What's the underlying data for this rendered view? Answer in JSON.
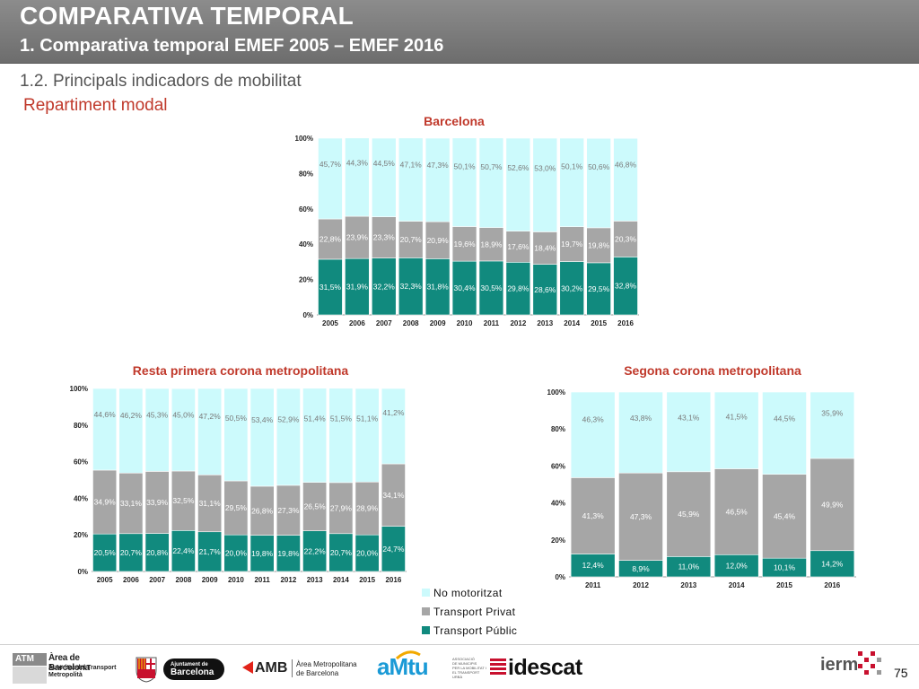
{
  "header": {
    "title": "COMPARATIVA TEMPORAL",
    "subtitle": "1. Comparativa temporal EMEF 2005 – EMEF 2016"
  },
  "section": "1.2. Principals indicadors de mobilitat",
  "subsection": "Repartiment modal",
  "colors": {
    "no_motoritzat": "#ccfafc",
    "transport_privat": "#a6a6a6",
    "transport_public": "#118a7e"
  },
  "legend": {
    "items": [
      {
        "label": "No motoritzat",
        "color": "#ccfafc"
      },
      {
        "label": "Transport Privat",
        "color": "#a6a6a6"
      },
      {
        "label": "Transport Públic",
        "color": "#118a7e"
      }
    ]
  },
  "chart_data": [
    {
      "type": "bar",
      "stacked": true,
      "title": "Barcelona",
      "categories": [
        "2005",
        "2006",
        "2007",
        "2008",
        "2009",
        "2010",
        "2011",
        "2012",
        "2013",
        "2014",
        "2015",
        "2016"
      ],
      "yticks": [
        "0%",
        "20%",
        "40%",
        "60%",
        "80%",
        "100%"
      ],
      "ylim": [
        0,
        100
      ],
      "series": [
        {
          "name": "Transport Públic",
          "values": [
            31.5,
            31.9,
            32.2,
            32.3,
            31.8,
            30.4,
            30.5,
            29.8,
            28.6,
            30.2,
            29.5,
            32.8
          ],
          "labels": [
            "31,5%",
            "31,9%",
            "32,2%",
            "32,3%",
            "31,8%",
            "30,4%",
            "30,5%",
            "29,8%",
            "28,6%",
            "30,2%",
            "29,5%",
            "32,8%"
          ]
        },
        {
          "name": "Transport Privat",
          "values": [
            22.8,
            23.9,
            23.3,
            20.7,
            20.9,
            19.6,
            18.9,
            17.6,
            18.4,
            19.7,
            19.8,
            20.3
          ],
          "labels": [
            "22,8%",
            "23,9%",
            "23,3%",
            "20,7%",
            "20,9%",
            "19,6%",
            "18,9%",
            "17,6%",
            "18,4%",
            "19,7%",
            "19,8%",
            "20,3%"
          ]
        },
        {
          "name": "No motoritzat",
          "values": [
            45.7,
            44.3,
            44.5,
            47.1,
            47.3,
            50.1,
            50.7,
            52.6,
            53.0,
            50.1,
            50.6,
            46.8
          ],
          "labels": [
            "45,7%",
            "44,3%",
            "44,5%",
            "47,1%",
            "47,3%",
            "50,1%",
            "50,7%",
            "52,6%",
            "53,0%",
            "50,1%",
            "50,6%",
            "46,8%"
          ]
        }
      ]
    },
    {
      "type": "bar",
      "stacked": true,
      "title": "Resta primera corona metropolitana",
      "categories": [
        "2005",
        "2006",
        "2007",
        "2008",
        "2009",
        "2010",
        "2011",
        "2012",
        "2013",
        "2014",
        "2015",
        "2016"
      ],
      "yticks": [
        "0%",
        "20%",
        "40%",
        "60%",
        "80%",
        "100%"
      ],
      "ylim": [
        0,
        100
      ],
      "series": [
        {
          "name": "Transport Públic",
          "values": [
            20.5,
            20.7,
            20.8,
            22.4,
            21.7,
            20.0,
            19.8,
            19.8,
            22.2,
            20.7,
            20.0,
            24.7
          ],
          "labels": [
            "20,5%",
            "20,7%",
            "20,8%",
            "22,4%",
            "21,7%",
            "20,0%",
            "19,8%",
            "19,8%",
            "22,2%",
            "20,7%",
            "20,0%",
            "24,7%"
          ]
        },
        {
          "name": "Transport Privat",
          "values": [
            34.9,
            33.1,
            33.9,
            32.5,
            31.1,
            29.5,
            26.8,
            27.3,
            26.5,
            27.9,
            28.9,
            34.1
          ],
          "labels": [
            "34,9%",
            "33,1%",
            "33,9%",
            "32,5%",
            "31,1%",
            "29,5%",
            "26,8%",
            "27,3%",
            "26,5%",
            "27,9%",
            "28,9%",
            "34,1%"
          ]
        },
        {
          "name": "No motoritzat",
          "values": [
            44.6,
            46.2,
            45.3,
            45.0,
            47.2,
            50.5,
            53.4,
            52.9,
            51.4,
            51.5,
            51.1,
            41.2
          ],
          "labels": [
            "44,6%",
            "46,2%",
            "45,3%",
            "45,0%",
            "47,2%",
            "50,5%",
            "53,4%",
            "52,9%",
            "51,4%",
            "51,5%",
            "51,1%",
            "41,2%"
          ]
        }
      ]
    },
    {
      "type": "bar",
      "stacked": true,
      "title": "Segona corona metropolitana",
      "categories": [
        "2011",
        "2012",
        "2013",
        "2014",
        "2015",
        "2016"
      ],
      "yticks": [
        "0%",
        "20%",
        "40%",
        "60%",
        "80%",
        "100%"
      ],
      "ylim": [
        0,
        100
      ],
      "series": [
        {
          "name": "Transport Públic",
          "values": [
            12.4,
            8.9,
            11.0,
            12.0,
            10.1,
            14.2
          ],
          "labels": [
            "12,4%",
            "8,9%",
            "11,0%",
            "12,0%",
            "10,1%",
            "14,2%"
          ]
        },
        {
          "name": "Transport Privat",
          "values": [
            41.3,
            47.3,
            45.9,
            46.5,
            45.4,
            49.9
          ],
          "labels": [
            "41,3%",
            "47,3%",
            "45,9%",
            "46,5%",
            "45,4%",
            "49,9%"
          ]
        },
        {
          "name": "No motoritzat",
          "values": [
            46.3,
            43.8,
            43.1,
            41.5,
            44.5,
            35.9
          ],
          "labels": [
            "46,3%",
            "43,8%",
            "43,1%",
            "41,5%",
            "44,5%",
            "35,9%"
          ]
        }
      ]
    }
  ],
  "footer": {
    "atm": {
      "badge": "ATM",
      "line1": "Àrea de Barcelona",
      "line2": "Autoritat del Transport",
      "line3": "Metropolità"
    },
    "ajuntament": {
      "line1": "Ajuntament de",
      "line2": "Barcelona"
    },
    "amb": {
      "acronym": "AMB",
      "line1": "Àrea Metropolitana",
      "line2": "de Barcelona"
    },
    "amtu": {
      "name": "aMtu",
      "line1": "ASSOCIACIÓ",
      "line2": "DE MUNICIPIS",
      "line3": "PER LA MOBILITAT I",
      "line4": "EL TRANSPORT URBÀ"
    },
    "idescat": "idescat",
    "ierm": "ierm",
    "page_number": "75"
  }
}
